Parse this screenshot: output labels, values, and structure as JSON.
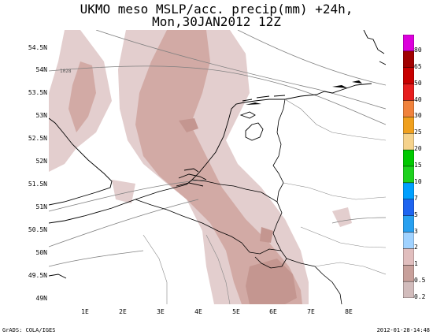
{
  "title": {
    "line1": "UKMO meso MSLP/acc. precip(mm) +24h,",
    "line2": "Mon,30JAN2012 12Z"
  },
  "map": {
    "lat_labels": [
      "54.5N",
      "54N",
      "53.5N",
      "53N",
      "52.5N",
      "52N",
      "51.5N",
      "51N",
      "50.5N",
      "50N",
      "49.5N",
      "49N"
    ],
    "lon_labels": [
      "1E",
      "2E",
      "3E",
      "4E",
      "5E",
      "6E",
      "7E",
      "8E"
    ],
    "isobar_label": "1028"
  },
  "colorbar": {
    "levels": [
      "80",
      "65",
      "50",
      "40",
      "30",
      "25",
      "20",
      "15",
      "10",
      "7",
      "5",
      "3",
      "2",
      "1",
      "0.5",
      "0.2"
    ],
    "colors": [
      "#dc00dc",
      "#a00000",
      "#c80000",
      "#e61e1e",
      "#f0823c",
      "#f0a01e",
      "#f5d28c",
      "#00c800",
      "#1ed21e",
      "#00a0ff",
      "#1e64f0",
      "#28a0f0",
      "#a0d2ff",
      "#e1bebe",
      "#c8a09b",
      "#d2bcbc"
    ]
  },
  "footer": {
    "left": "GrADS: COLA/IGES",
    "right": "2012-01-28-14:48"
  }
}
